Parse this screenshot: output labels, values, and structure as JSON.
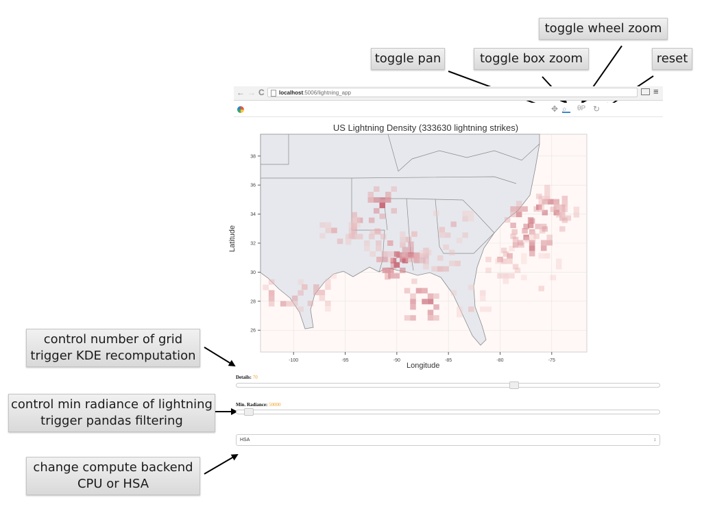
{
  "callouts": {
    "wheel_zoom": "toggle wheel zoom",
    "pan": "toggle pan",
    "box_zoom": "toggle box zoom",
    "reset": "reset",
    "details_line1": "control number of grid",
    "details_line2": "trigger KDE recomputation",
    "radiance_line1": "control min radiance of lightning",
    "radiance_line2": "trigger pandas filtering",
    "backend_line1": "change compute backend",
    "backend_line2": "CPU or HSA"
  },
  "browser": {
    "back_icon": "back-arrow-icon",
    "forward_icon": "forward-arrow-icon",
    "reload_icon": "reload-icon",
    "url_host": "localhost",
    "url_path": ":5006/lightning_app"
  },
  "toolbar": {
    "pan_icon": "pan-icon",
    "box_zoom_icon": "box-zoom-icon",
    "wheel_zoom_icon": "wheel-zoom-icon",
    "reset_icon": "reset-icon"
  },
  "plot": {
    "title": "US Lightning Density (333630 lightning strikes)",
    "xlabel": "Longitude",
    "ylabel": "Latitude",
    "x_ticks": [
      "-100",
      "-95",
      "-90",
      "-85",
      "-80",
      "-75"
    ],
    "y_ticks": [
      "38",
      "36",
      "34",
      "32",
      "30",
      "28",
      "26"
    ]
  },
  "chart_data": {
    "type": "heatmap",
    "title": "US Lightning Density (333630 lightning strikes)",
    "xlabel": "Longitude",
    "ylabel": "Latitude",
    "xlim": [
      -103.2,
      -71.6
    ],
    "ylim": [
      24.5,
      39.5
    ],
    "x_ticks": [
      -100,
      -95,
      -90,
      -85,
      -80,
      -75
    ],
    "y_ticks": [
      38,
      36,
      34,
      32,
      30,
      28,
      26
    ],
    "grid": true,
    "background": "map of southeastern United States",
    "colormap": [
      "#fff4f1",
      "#a8203a"
    ],
    "hotspots": [
      {
        "lon": -89.2,
        "lat": 30.8,
        "intensity": 0.95
      },
      {
        "lon": -90.0,
        "lat": 30.5,
        "intensity": 0.8
      },
      {
        "lon": -87.3,
        "lat": 27.6,
        "intensity": 0.9
      },
      {
        "lon": -76.9,
        "lat": 32.4,
        "intensity": 0.85
      },
      {
        "lon": -77.6,
        "lat": 33.6,
        "intensity": 0.75
      },
      {
        "lon": -75.1,
        "lat": 34.1,
        "intensity": 0.8
      },
      {
        "lon": -74.3,
        "lat": 34.7,
        "intensity": 0.6
      },
      {
        "lon": -91.4,
        "lat": 34.6,
        "intensity": 0.75
      },
      {
        "lon": -93.0,
        "lat": 33.2,
        "intensity": 0.6
      },
      {
        "lon": -101.0,
        "lat": 28.2,
        "intensity": 0.6
      },
      {
        "lon": -97.8,
        "lat": 28.6,
        "intensity": 0.45
      },
      {
        "lon": -88.3,
        "lat": 31.5,
        "intensity": 0.55
      },
      {
        "lon": -84.5,
        "lat": 33.3,
        "intensity": 0.4
      },
      {
        "lon": -95.5,
        "lat": 32.5,
        "intensity": 0.45
      },
      {
        "lon": -80.0,
        "lat": 30.5,
        "intensity": 0.4
      },
      {
        "lon": -78.5,
        "lat": 31.5,
        "intensity": 0.5
      },
      {
        "lon": -85.8,
        "lat": 30.6,
        "intensity": 0.4
      },
      {
        "lon": -91.2,
        "lat": 32.0,
        "intensity": 0.45
      },
      {
        "lon": -82.8,
        "lat": 28.2,
        "intensity": 0.3
      },
      {
        "lon": -76.0,
        "lat": 30.0,
        "intensity": 0.3
      }
    ]
  },
  "controls": {
    "details_label": "Details:",
    "details_value": "70",
    "details_fraction": 0.66,
    "radiance_label": "Min. Radiance:",
    "radiance_value": "50000",
    "radiance_fraction": 0.02,
    "backend_value": "HSA",
    "backend_caret": "↕"
  },
  "colors": {
    "accent_value": "#f0a020",
    "heat_low": "#fde5df",
    "heat_high": "#a8203a",
    "land": "#e7e9ee"
  }
}
